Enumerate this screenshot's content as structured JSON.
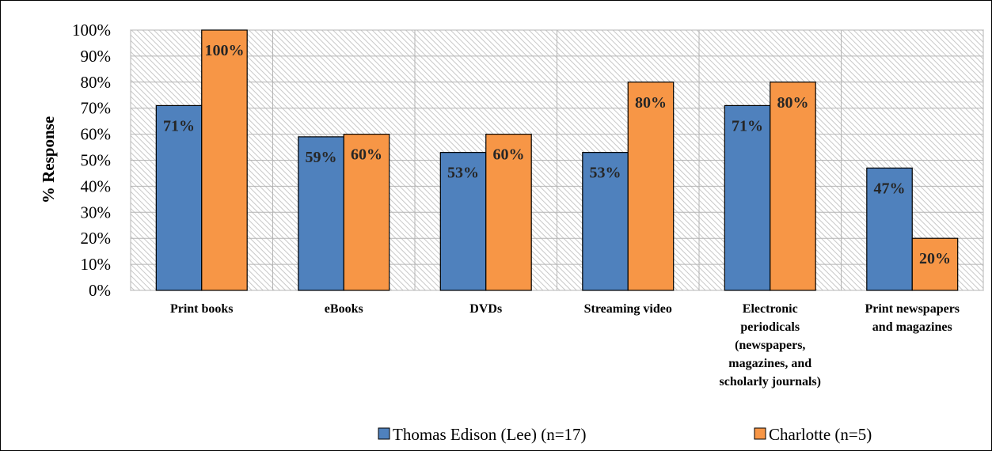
{
  "chart_data": {
    "type": "bar",
    "title": "",
    "xlabel": "",
    "ylabel": "% Response",
    "ylim": [
      0,
      100
    ],
    "y_ticks": [
      "0%",
      "10%",
      "20%",
      "30%",
      "40%",
      "50%",
      "60%",
      "70%",
      "80%",
      "90%",
      "100%"
    ],
    "y_tick_values": [
      0,
      10,
      20,
      30,
      40,
      50,
      60,
      70,
      80,
      90,
      100
    ],
    "categories": [
      [
        "Print books"
      ],
      [
        "eBooks"
      ],
      [
        "DVDs"
      ],
      [
        "Streaming video"
      ],
      [
        "Electronic",
        "periodicals",
        "(newspapers,",
        "magazines, and",
        "scholarly journals)"
      ],
      [
        "Print newspapers",
        "and magazines"
      ]
    ],
    "series": [
      {
        "name": "Thomas Edison (Lee) (n=17)",
        "color": "#4f81bd",
        "values": [
          71,
          59,
          53,
          53,
          71,
          47
        ],
        "labels": [
          "71%",
          "59%",
          "53%",
          "53%",
          "71%",
          "47%"
        ]
      },
      {
        "name": "Charlotte (n=5)",
        "color": "#f79646",
        "values": [
          100,
          60,
          60,
          80,
          80,
          20
        ],
        "labels": [
          "100%",
          "60%",
          "60%",
          "80%",
          "80%",
          "20%"
        ]
      }
    ],
    "grid": true,
    "plot_background": "hatched-gray",
    "legend_position": "bottom"
  }
}
